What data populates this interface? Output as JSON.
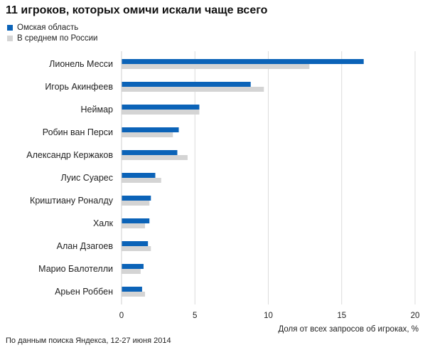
{
  "chart_data": {
    "type": "bar",
    "orientation": "horizontal",
    "title": "11 игроков, которых омичи искали чаще всего",
    "xlabel": "Доля от всех запросов об игроках, %",
    "ylabel": "",
    "xlim": [
      0,
      20
    ],
    "xticks": [
      0,
      5,
      10,
      15,
      20
    ],
    "grid": true,
    "legend_position": "top-left",
    "categories": [
      "Лионель Месси",
      "Игорь Акинфеев",
      "Неймар",
      "Робин ван Перси",
      "Александр Кержаков",
      "Луис Суарес",
      "Криштиану Роналду",
      "Халк",
      "Алан Дзагоев",
      "Марио Балотелли",
      "Арьен Роббен"
    ],
    "series": [
      {
        "name": "Омская область",
        "color": "#0b63b8",
        "values": [
          16.5,
          8.8,
          5.3,
          3.9,
          3.8,
          2.3,
          2.0,
          1.9,
          1.8,
          1.5,
          1.4
        ]
      },
      {
        "name": "В среднем по России",
        "color": "#d4d4d4",
        "values": [
          12.8,
          9.7,
          5.3,
          3.5,
          4.5,
          2.7,
          1.9,
          1.6,
          2.0,
          1.3,
          1.6
        ]
      }
    ]
  },
  "footnote": "По данным поиска Яндекса, 12-27 июня 2014"
}
